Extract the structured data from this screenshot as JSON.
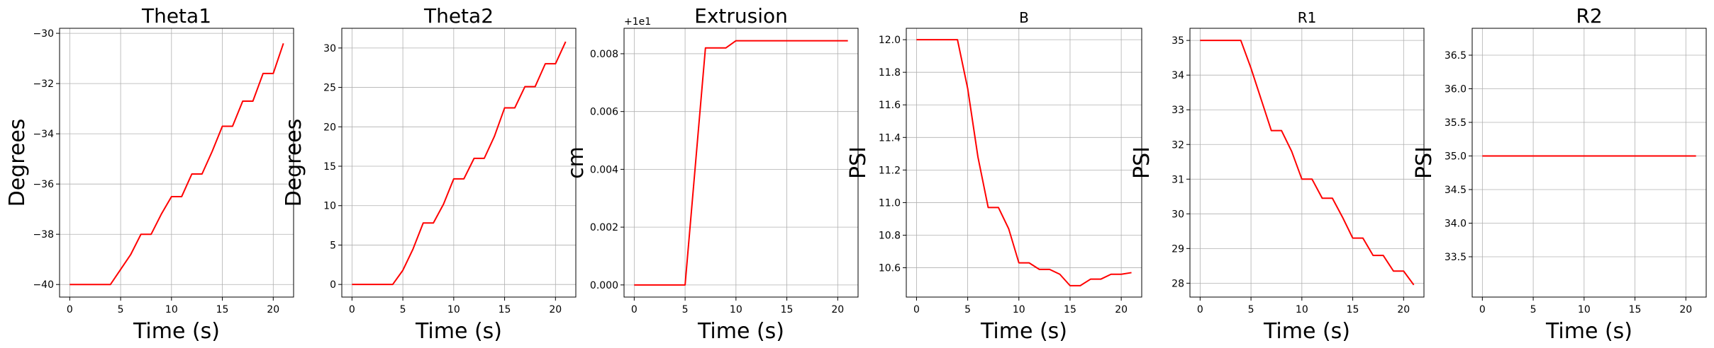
{
  "chart_data": [
    {
      "type": "line",
      "title": "Theta1",
      "xlabel": "Time (s)",
      "ylabel": "Degrees",
      "title_size": 28,
      "xlim": [
        -1,
        22
      ],
      "ylim": [
        -40.5,
        -29.8
      ],
      "xticks": [
        0,
        5,
        10,
        15,
        20
      ],
      "yticks": [
        -40,
        -38,
        -36,
        -34,
        -32,
        -30
      ],
      "offset_label": "",
      "grid": true,
      "series": [
        {
          "color": "#ff0000",
          "x": [
            0,
            1,
            2,
            3,
            4,
            5,
            6,
            7,
            8,
            9,
            10,
            11,
            12,
            13,
            14,
            15,
            16,
            17,
            18,
            19,
            20,
            21
          ],
          "y": [
            -40,
            -40,
            -40,
            -40,
            -40,
            -39.4,
            -38.8,
            -38,
            -38,
            -37.2,
            -36.5,
            -36.5,
            -35.6,
            -35.6,
            -34.7,
            -33.7,
            -33.7,
            -32.7,
            -32.7,
            -31.6,
            -31.6,
            -30.4
          ]
        }
      ]
    },
    {
      "type": "line",
      "title": "Theta2",
      "xlabel": "Time (s)",
      "ylabel": "Degrees",
      "title_size": 28,
      "xlim": [
        -1,
        22
      ],
      "ylim": [
        -1.6,
        32.5
      ],
      "xticks": [
        0,
        5,
        10,
        15,
        20
      ],
      "yticks": [
        0,
        5,
        10,
        15,
        20,
        25,
        30
      ],
      "offset_label": "",
      "grid": true,
      "series": [
        {
          "color": "#ff0000",
          "x": [
            0,
            1,
            2,
            3,
            4,
            5,
            6,
            7,
            8,
            9,
            10,
            11,
            12,
            13,
            14,
            15,
            16,
            17,
            18,
            19,
            20,
            21
          ],
          "y": [
            0,
            0,
            0,
            0,
            0,
            1.8,
            4.5,
            7.8,
            7.8,
            10.2,
            13.4,
            13.4,
            16,
            16,
            18.8,
            22.4,
            22.4,
            25.1,
            25.1,
            28,
            28,
            30.8
          ]
        }
      ]
    },
    {
      "type": "line",
      "title": "Extrusion",
      "xlabel": "Time (s)",
      "ylabel": "cm",
      "title_size": 28,
      "xlim": [
        -1,
        22
      ],
      "ylim": [
        -0.00042,
        0.00888
      ],
      "xticks": [
        0,
        5,
        10,
        15,
        20
      ],
      "yticks": [
        0.0,
        0.002,
        0.004,
        0.006,
        0.008
      ],
      "ytick_labels": [
        "0.000",
        "0.002",
        "0.004",
        "0.006",
        "0.008"
      ],
      "offset_label": "+1e1",
      "grid": true,
      "series": [
        {
          "color": "#ff0000",
          "x": [
            0,
            1,
            2,
            3,
            4,
            5,
            6,
            7,
            8,
            9,
            10,
            11,
            12,
            13,
            14,
            15,
            16,
            17,
            18,
            19,
            20,
            21
          ],
          "y": [
            0,
            0,
            0,
            0,
            0,
            0,
            0.0041,
            0.0082,
            0.0082,
            0.0082,
            0.00845,
            0.00845,
            0.00845,
            0.00845,
            0.00845,
            0.00845,
            0.00845,
            0.00845,
            0.00845,
            0.00845,
            0.00845,
            0.00845
          ]
        }
      ]
    },
    {
      "type": "line",
      "title": "B",
      "xlabel": "Time (s)",
      "ylabel": "PSI",
      "title_size": 20,
      "xlim": [
        -1,
        22
      ],
      "ylim": [
        10.42,
        12.07
      ],
      "xticks": [
        0,
        5,
        10,
        15,
        20
      ],
      "yticks": [
        10.6,
        10.8,
        11.0,
        11.2,
        11.4,
        11.6,
        11.8,
        12.0
      ],
      "ytick_labels": [
        "10.6",
        "10.8",
        "11.0",
        "11.2",
        "11.4",
        "11.6",
        "11.8",
        "12.0"
      ],
      "offset_label": "",
      "grid": true,
      "series": [
        {
          "color": "#ff0000",
          "x": [
            0,
            1,
            2,
            3,
            4,
            5,
            6,
            7,
            8,
            9,
            10,
            11,
            12,
            13,
            14,
            15,
            16,
            17,
            18,
            19,
            20,
            21
          ],
          "y": [
            12,
            12,
            12,
            12,
            12,
            11.7,
            11.28,
            10.97,
            10.97,
            10.84,
            10.63,
            10.63,
            10.59,
            10.59,
            10.56,
            10.49,
            10.49,
            10.53,
            10.53,
            10.56,
            10.56,
            10.57
          ]
        }
      ]
    },
    {
      "type": "line",
      "title": "R1",
      "xlabel": "Time (s)",
      "ylabel": "PSI",
      "title_size": 20,
      "xlim": [
        -1,
        22
      ],
      "ylim": [
        27.6,
        35.35
      ],
      "xticks": [
        0,
        5,
        10,
        15,
        20
      ],
      "yticks": [
        28,
        29,
        30,
        31,
        32,
        33,
        34,
        35
      ],
      "offset_label": "",
      "grid": true,
      "series": [
        {
          "color": "#ff0000",
          "x": [
            0,
            1,
            2,
            3,
            4,
            5,
            6,
            7,
            8,
            9,
            10,
            11,
            12,
            13,
            14,
            15,
            16,
            17,
            18,
            19,
            20,
            21
          ],
          "y": [
            35,
            35,
            35,
            35,
            35,
            34.2,
            33.3,
            32.4,
            32.4,
            31.8,
            31,
            31,
            30.45,
            30.45,
            29.9,
            29.3,
            29.3,
            28.8,
            28.8,
            28.35,
            28.35,
            27.95
          ]
        }
      ]
    },
    {
      "type": "line",
      "title": "R2",
      "xlabel": "Time (s)",
      "ylabel": "PSI",
      "title_size": 28,
      "xlim": [
        -1,
        22
      ],
      "ylim": [
        32.9,
        36.9
      ],
      "xticks": [
        0,
        5,
        10,
        15,
        20
      ],
      "yticks": [
        33.5,
        34.0,
        34.5,
        35.0,
        35.5,
        36.0,
        36.5
      ],
      "ytick_labels": [
        "33.5",
        "34.0",
        "34.5",
        "35.0",
        "35.5",
        "36.0",
        "36.5"
      ],
      "offset_label": "",
      "grid": true,
      "series": [
        {
          "color": "#ff0000",
          "x": [
            0,
            21
          ],
          "y": [
            35,
            35
          ]
        }
      ]
    }
  ]
}
